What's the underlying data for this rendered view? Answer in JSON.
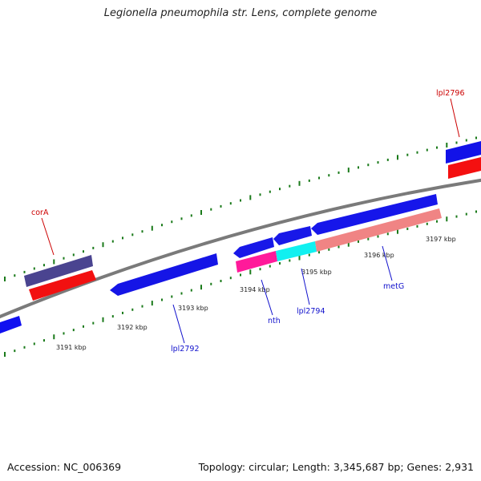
{
  "title": "Legionella pneumophila str. Lens, complete genome",
  "colors": {
    "gene": "#1515e6",
    "cds": "#f21010",
    "cds_nth": "#ff1a9a",
    "cds_lpl2794": "#11f0f0",
    "cds_metG": "#f08484",
    "gene_corA": "#4a4490",
    "backbone": "#7a7a7a",
    "scale_dots": "#1a7a1a",
    "label_plus_strand": "#cc0000",
    "label_minus_strand": "#1010cc"
  },
  "scale": {
    "ticks": [
      "3191 kbp",
      "3192 kbp",
      "3193 kbp",
      "3194 kbp",
      "3195 kbp",
      "3196 kbp",
      "3197 kbp"
    ]
  },
  "features": [
    {
      "label": "corA"
    },
    {
      "label": "lpl2796"
    },
    {
      "label": "lpl2792"
    },
    {
      "label": "nth"
    },
    {
      "label": "lpl2794"
    },
    {
      "label": "metG"
    }
  ],
  "footer": {
    "accession_label": "Accession:",
    "accession": "NC_006369",
    "summary": "Topology: circular; Length: 3,345,687 bp; Genes: 2,931"
  }
}
